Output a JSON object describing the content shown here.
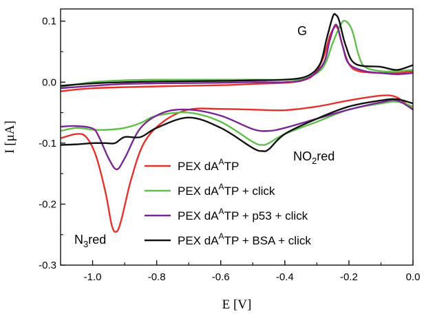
{
  "chart_data": {
    "type": "line",
    "xlabel": "E [V]",
    "ylabel": "I [μA]",
    "xlim": [
      -1.1,
      0.0
    ],
    "ylim": [
      -0.3,
      0.12
    ],
    "xticks": [
      -1.0,
      -0.8,
      -0.6,
      -0.4,
      -0.2,
      0.0
    ],
    "xtick_labels": [
      "-1.0",
      "-0.8",
      "-0.6",
      "-0.4",
      "-0.2",
      "0.0"
    ],
    "yticks": [
      -0.3,
      -0.2,
      -0.1,
      0.0,
      0.1
    ],
    "ytick_labels": [
      "-0.3",
      "-0.2",
      "-0.1",
      "0.0",
      "0.1"
    ],
    "grid": false,
    "legend_position": "center-right",
    "annotations": {
      "g": "G",
      "no2_main": "NO",
      "no2_sub": "2",
      "no2_tail": "red",
      "n3_main": "N",
      "n3_sub": "3",
      "n3_tail": "red"
    },
    "series": [
      {
        "color": "#e8302a",
        "legend": {
          "pre": "PEX dA",
          "sup": "A",
          "post": "TP"
        },
        "forward": [
          [
            -1.1,
            -0.015
          ],
          [
            -1.0,
            -0.01
          ],
          [
            -0.8,
            -0.007
          ],
          [
            -0.6,
            -0.005
          ],
          [
            -0.5,
            -0.003
          ],
          [
            -0.4,
            -0.001
          ],
          [
            -0.35,
            0.002
          ],
          [
            -0.31,
            0.012
          ],
          [
            -0.28,
            0.04
          ],
          [
            -0.26,
            0.075
          ],
          [
            -0.245,
            0.09
          ],
          [
            -0.235,
            0.088
          ],
          [
            -0.22,
            0.06
          ],
          [
            -0.2,
            0.03
          ],
          [
            -0.17,
            0.018
          ],
          [
            -0.1,
            0.015
          ],
          [
            -0.05,
            0.015
          ],
          [
            0.0,
            0.018
          ]
        ],
        "reverse": [
          [
            0.0,
            -0.045
          ],
          [
            -0.05,
            -0.025
          ],
          [
            -0.1,
            -0.022
          ],
          [
            -0.2,
            -0.03
          ],
          [
            -0.3,
            -0.04
          ],
          [
            -0.4,
            -0.046
          ],
          [
            -0.5,
            -0.045
          ],
          [
            -0.6,
            -0.044
          ],
          [
            -0.7,
            -0.045
          ],
          [
            -0.78,
            -0.065
          ],
          [
            -0.84,
            -0.1
          ],
          [
            -0.88,
            -0.16
          ],
          [
            -0.91,
            -0.225
          ],
          [
            -0.925,
            -0.245
          ],
          [
            -0.94,
            -0.235
          ],
          [
            -0.96,
            -0.18
          ],
          [
            -0.99,
            -0.12
          ],
          [
            -1.02,
            -0.09
          ],
          [
            -1.05,
            -0.085
          ],
          [
            -1.1,
            -0.092
          ]
        ]
      },
      {
        "color": "#5ec04a",
        "legend": {
          "pre": "PEX dA",
          "sup": "A",
          "post": "TP + click"
        },
        "forward": [
          [
            -1.1,
            -0.008
          ],
          [
            -1.0,
            0.0
          ],
          [
            -0.9,
            0.003
          ],
          [
            -0.8,
            0.004
          ],
          [
            -0.6,
            0.004
          ],
          [
            -0.5,
            0.004
          ],
          [
            -0.4,
            0.004
          ],
          [
            -0.33,
            0.007
          ],
          [
            -0.28,
            0.025
          ],
          [
            -0.25,
            0.065
          ],
          [
            -0.225,
            0.095
          ],
          [
            -0.21,
            0.1
          ],
          [
            -0.19,
            0.085
          ],
          [
            -0.17,
            0.045
          ],
          [
            -0.15,
            0.025
          ],
          [
            -0.1,
            0.018
          ],
          [
            -0.05,
            0.018
          ],
          [
            0.0,
            0.02
          ]
        ],
        "reverse": [
          [
            0.0,
            -0.04
          ],
          [
            -0.05,
            -0.032
          ],
          [
            -0.1,
            -0.035
          ],
          [
            -0.2,
            -0.045
          ],
          [
            -0.3,
            -0.065
          ],
          [
            -0.4,
            -0.085
          ],
          [
            -0.45,
            -0.1
          ],
          [
            -0.47,
            -0.103
          ],
          [
            -0.5,
            -0.098
          ],
          [
            -0.6,
            -0.065
          ],
          [
            -0.7,
            -0.05
          ],
          [
            -0.8,
            -0.055
          ],
          [
            -0.85,
            -0.067
          ],
          [
            -0.9,
            -0.075
          ],
          [
            -0.95,
            -0.078
          ],
          [
            -1.0,
            -0.078
          ],
          [
            -1.05,
            -0.075
          ],
          [
            -1.1,
            -0.08
          ]
        ]
      },
      {
        "color": "#7a2596",
        "legend": {
          "pre": "PEX dA",
          "sup": "A",
          "post": "TP + p53 + click"
        },
        "forward": [
          [
            -1.1,
            -0.01
          ],
          [
            -1.0,
            -0.006
          ],
          [
            -0.9,
            -0.003
          ],
          [
            -0.8,
            -0.002
          ],
          [
            -0.6,
            -0.001
          ],
          [
            -0.5,
            0.0
          ],
          [
            -0.4,
            0.0
          ],
          [
            -0.33,
            0.006
          ],
          [
            -0.28,
            0.03
          ],
          [
            -0.26,
            0.068
          ],
          [
            -0.245,
            0.092
          ],
          [
            -0.235,
            0.09
          ],
          [
            -0.22,
            0.06
          ],
          [
            -0.2,
            0.03
          ],
          [
            -0.15,
            0.018
          ],
          [
            -0.1,
            0.015
          ],
          [
            -0.05,
            0.013
          ],
          [
            0.0,
            0.015
          ]
        ],
        "reverse": [
          [
            0.0,
            -0.045
          ],
          [
            -0.05,
            -0.03
          ],
          [
            -0.1,
            -0.033
          ],
          [
            -0.2,
            -0.045
          ],
          [
            -0.3,
            -0.06
          ],
          [
            -0.4,
            -0.075
          ],
          [
            -0.45,
            -0.08
          ],
          [
            -0.5,
            -0.077
          ],
          [
            -0.6,
            -0.055
          ],
          [
            -0.7,
            -0.045
          ],
          [
            -0.78,
            -0.05
          ],
          [
            -0.85,
            -0.075
          ],
          [
            -0.9,
            -0.125
          ],
          [
            -0.925,
            -0.143
          ],
          [
            -0.95,
            -0.125
          ],
          [
            -0.98,
            -0.09
          ],
          [
            -1.0,
            -0.076
          ],
          [
            -1.05,
            -0.072
          ],
          [
            -1.1,
            -0.073
          ]
        ]
      },
      {
        "color": "#111111",
        "legend": {
          "pre": "PEX dA",
          "sup": "A",
          "post": "TP + BSA + click"
        },
        "forward": [
          [
            -1.1,
            -0.006
          ],
          [
            -1.0,
            -0.002
          ],
          [
            -0.9,
            0.0
          ],
          [
            -0.8,
            0.001
          ],
          [
            -0.6,
            0.002
          ],
          [
            -0.5,
            0.003
          ],
          [
            -0.4,
            0.004
          ],
          [
            -0.33,
            0.01
          ],
          [
            -0.29,
            0.03
          ],
          [
            -0.27,
            0.07
          ],
          [
            -0.25,
            0.108
          ],
          [
            -0.24,
            0.11
          ],
          [
            -0.23,
            0.1
          ],
          [
            -0.21,
            0.06
          ],
          [
            -0.18,
            0.03
          ],
          [
            -0.1,
            0.025
          ],
          [
            -0.05,
            0.02
          ],
          [
            0.0,
            0.028
          ]
        ],
        "reverse": [
          [
            0.0,
            -0.035
          ],
          [
            -0.05,
            -0.028
          ],
          [
            -0.1,
            -0.03
          ],
          [
            -0.2,
            -0.04
          ],
          [
            -0.3,
            -0.06
          ],
          [
            -0.4,
            -0.085
          ],
          [
            -0.45,
            -0.11
          ],
          [
            -0.47,
            -0.113
          ],
          [
            -0.5,
            -0.108
          ],
          [
            -0.6,
            -0.075
          ],
          [
            -0.7,
            -0.058
          ],
          [
            -0.8,
            -0.075
          ],
          [
            -0.85,
            -0.09
          ],
          [
            -0.9,
            -0.09
          ],
          [
            -0.93,
            -0.1
          ],
          [
            -0.96,
            -0.1
          ],
          [
            -1.0,
            -0.1
          ],
          [
            -1.05,
            -0.102
          ],
          [
            -1.1,
            -0.103
          ]
        ]
      }
    ]
  }
}
